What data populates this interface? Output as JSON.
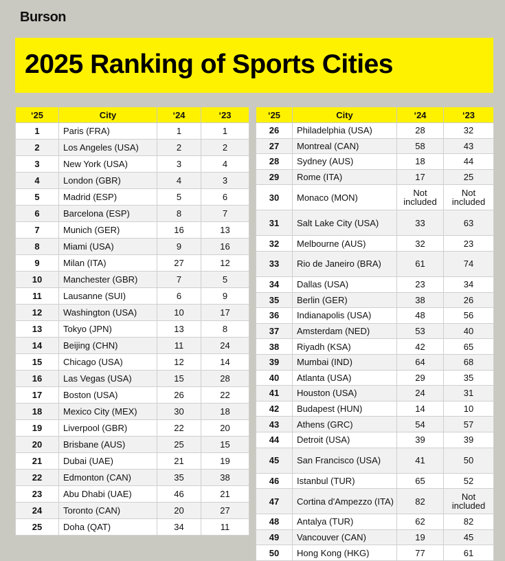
{
  "brand": "Burson",
  "title": "2025 Ranking of Sports Cities",
  "tables": [
    {
      "header": [
        "‘25",
        "City",
        "‘24",
        "‘23"
      ],
      "rows": [
        [
          1,
          "Paris (FRA)",
          1,
          1
        ],
        [
          2,
          "Los Angeles (USA)",
          2,
          2
        ],
        [
          3,
          "New York (USA)",
          3,
          4
        ],
        [
          4,
          "London (GBR)",
          4,
          3
        ],
        [
          5,
          "Madrid (ESP)",
          5,
          6
        ],
        [
          6,
          "Barcelona (ESP)",
          8,
          7
        ],
        [
          7,
          "Munich (GER)",
          16,
          13
        ],
        [
          8,
          "Miami (USA)",
          9,
          16
        ],
        [
          9,
          "Milan (ITA)",
          27,
          12
        ],
        [
          10,
          "Manchester (GBR)",
          7,
          5
        ],
        [
          11,
          "Lausanne (SUI)",
          6,
          9
        ],
        [
          12,
          "Washington (USA)",
          10,
          17
        ],
        [
          13,
          "Tokyo (JPN)",
          13,
          8
        ],
        [
          14,
          "Beijing (CHN)",
          11,
          24
        ],
        [
          15,
          "Chicago (USA)",
          12,
          14
        ],
        [
          16,
          "Las Vegas (USA)",
          15,
          28
        ],
        [
          17,
          "Boston (USA)",
          26,
          22
        ],
        [
          18,
          "Mexico City (MEX)",
          30,
          18
        ],
        [
          19,
          "Liverpool (GBR)",
          22,
          20
        ],
        [
          20,
          "Brisbane (AUS)",
          25,
          15
        ],
        [
          21,
          "Dubai (UAE)",
          21,
          19
        ],
        [
          22,
          "Edmonton (CAN)",
          35,
          38
        ],
        [
          23,
          "Abu Dhabi (UAE)",
          46,
          21
        ],
        [
          24,
          "Toronto (CAN)",
          20,
          27
        ],
        [
          25,
          "Doha (QAT)",
          34,
          11
        ]
      ]
    },
    {
      "header": [
        "‘25",
        "City",
        "‘24",
        "‘23"
      ],
      "rows": [
        [
          26,
          "Philadelphia (USA)",
          28,
          32
        ],
        [
          27,
          "Montreal (CAN)",
          58,
          43
        ],
        [
          28,
          "Sydney (AUS)",
          18,
          44
        ],
        [
          29,
          "Rome (ITA)",
          17,
          25
        ],
        [
          30,
          "Monaco (MON)",
          "Not included",
          "Not included"
        ],
        [
          31,
          "Salt Lake City (USA)",
          33,
          63
        ],
        [
          32,
          "Melbourne (AUS)",
          32,
          23
        ],
        [
          33,
          "Rio de Janeiro (BRA)",
          61,
          74
        ],
        [
          34,
          "Dallas (USA)",
          23,
          34
        ],
        [
          35,
          "Berlin (GER)",
          38,
          26
        ],
        [
          36,
          "Indianapolis (USA)",
          48,
          56
        ],
        [
          37,
          "Amsterdam (NED)",
          53,
          40
        ],
        [
          38,
          "Riyadh (KSA)",
          42,
          65
        ],
        [
          39,
          "Mumbai (IND)",
          64,
          68
        ],
        [
          40,
          "Atlanta (USA)",
          29,
          35
        ],
        [
          41,
          "Houston (USA)",
          24,
          31
        ],
        [
          42,
          "Budapest (HUN)",
          14,
          10
        ],
        [
          43,
          "Athens (GRC)",
          54,
          57
        ],
        [
          44,
          "Detroit (USA)",
          39,
          39
        ],
        [
          45,
          "San Francisco (USA)",
          41,
          50
        ],
        [
          46,
          "Istanbul (TUR)",
          65,
          52
        ],
        [
          47,
          "Cortina d'Ampezzo (ITA)",
          82,
          "Not included"
        ],
        [
          48,
          "Antalya (TUR)",
          62,
          82
        ],
        [
          49,
          "Vancouver (CAN)",
          19,
          45
        ],
        [
          50,
          "Hong Kong (HKG)",
          77,
          61
        ]
      ]
    }
  ]
}
